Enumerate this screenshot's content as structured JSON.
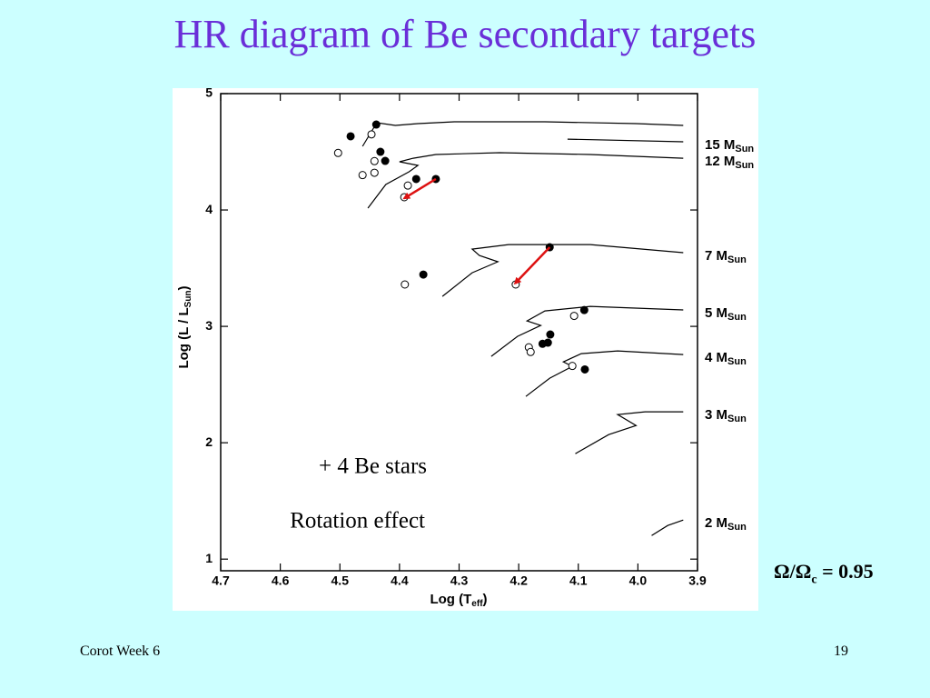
{
  "slide": {
    "title": "HR diagram of Be secondary targets",
    "footer_left": "Corot Week 6",
    "footer_right": "19",
    "ratio": {
      "text": "Ω/Ω",
      "sub": "c",
      "rest": " = 0.95"
    }
  },
  "chart_data": {
    "type": "scatter",
    "x_label": {
      "text": "Log (T",
      "sub": "eff",
      "end": ")"
    },
    "y_label": {
      "text": "Log (L / L",
      "sub": "Sun",
      "end": ")"
    },
    "annotations": [
      "+ 4 Be stars",
      "Rotation effect"
    ],
    "xlim": [
      4.7,
      3.9
    ],
    "ylim": [
      0.9,
      5.0
    ],
    "xticks": [
      4.7,
      4.6,
      4.5,
      4.4,
      4.3,
      4.2,
      4.1,
      {
        "value": 4,
        "label": "4.0"
      },
      3.9
    ],
    "yticks": [
      1,
      2,
      3,
      4,
      5
    ],
    "series": [
      {
        "marker": "filled",
        "color": "#000000",
        "x": [
          4.482,
          4.439,
          4.432,
          4.424,
          4.372,
          4.339,
          4.148,
          4.36,
          4.09,
          4.147,
          4.16,
          4.151,
          4.089
        ],
        "values": [
          4.633,
          4.734,
          4.5,
          4.422,
          4.266,
          4.266,
          3.68,
          3.445,
          3.14,
          2.93,
          2.85,
          2.86,
          2.63
        ]
      },
      {
        "marker": "open",
        "color": "#000000",
        "x": [
          4.503,
          4.447,
          4.442,
          4.442,
          4.462,
          4.386,
          4.392,
          4.391,
          4.205,
          4.107,
          4.183,
          4.18,
          4.11
        ],
        "values": [
          4.49,
          4.65,
          4.42,
          4.32,
          4.3,
          4.21,
          4.11,
          3.36,
          3.36,
          3.09,
          2.82,
          2.78,
          2.66
        ]
      }
    ],
    "arrows": {
      "color": "#dd1111",
      "items": [
        {
          "x": [
            4.339,
            4.392
          ],
          "values": [
            4.266,
            4.1
          ]
        },
        {
          "x": [
            4.148,
            4.206
          ],
          "values": [
            3.68,
            3.37
          ]
        }
      ]
    },
    "tracks": [
      {
        "name": "15 M",
        "name_sub": "Sun",
        "color": "#000000",
        "x": [
          4.462,
          4.438,
          4.407,
          4.369,
          4.308,
          4.156,
          4.003,
          3.924,
          null,
          4.118,
          3.924
        ],
        "values": [
          4.547,
          4.75,
          4.727,
          4.742,
          4.758,
          4.758,
          4.742,
          4.727,
          null,
          4.609,
          4.586
        ]
      },
      {
        "name": "12 M",
        "name_sub": "Sun",
        "color": "#000000",
        "x": [
          4.453,
          4.423,
          4.384,
          4.369,
          4.4,
          4.377,
          4.339,
          4.232,
          4.08,
          3.924
        ],
        "values": [
          4.016,
          4.219,
          4.328,
          4.383,
          4.414,
          4.445,
          4.477,
          4.492,
          4.477,
          4.445
        ]
      },
      {
        "name": "7 M",
        "name_sub": "Sun",
        "color": "#000000",
        "x": [
          4.328,
          4.278,
          4.235,
          4.266,
          4.278,
          4.217,
          4.08,
          3.924
        ],
        "values": [
          3.258,
          3.461,
          3.555,
          3.609,
          3.664,
          3.703,
          3.703,
          3.633
        ]
      },
      {
        "name": "5 M",
        "name_sub": "Sun",
        "color": "#000000",
        "x": [
          4.246,
          4.202,
          4.163,
          4.186,
          4.156,
          4.08,
          3.924
        ],
        "values": [
          2.742,
          2.914,
          3.008,
          3.047,
          3.133,
          3.172,
          3.141
        ]
      },
      {
        "name": "4 M",
        "name_sub": "Sun",
        "color": "#000000",
        "x": [
          4.188,
          4.148,
          4.11,
          4.125,
          4.095,
          4.034,
          3.924
        ],
        "values": [
          2.398,
          2.555,
          2.656,
          2.695,
          2.766,
          2.789,
          2.758
        ]
      },
      {
        "name": "3 M",
        "name_sub": "Sun",
        "color": "#000000",
        "x": [
          4.105,
          4.049,
          4.003,
          4.034,
          3.988,
          3.924
        ],
        "values": [
          1.906,
          2.07,
          2.148,
          2.242,
          2.266,
          2.266
        ]
      },
      {
        "name": "2 M",
        "name_sub": "Sun",
        "color": "#000000",
        "x": [
          3.977,
          3.95,
          3.924
        ],
        "values": [
          1.203,
          1.289,
          1.336
        ]
      }
    ]
  }
}
